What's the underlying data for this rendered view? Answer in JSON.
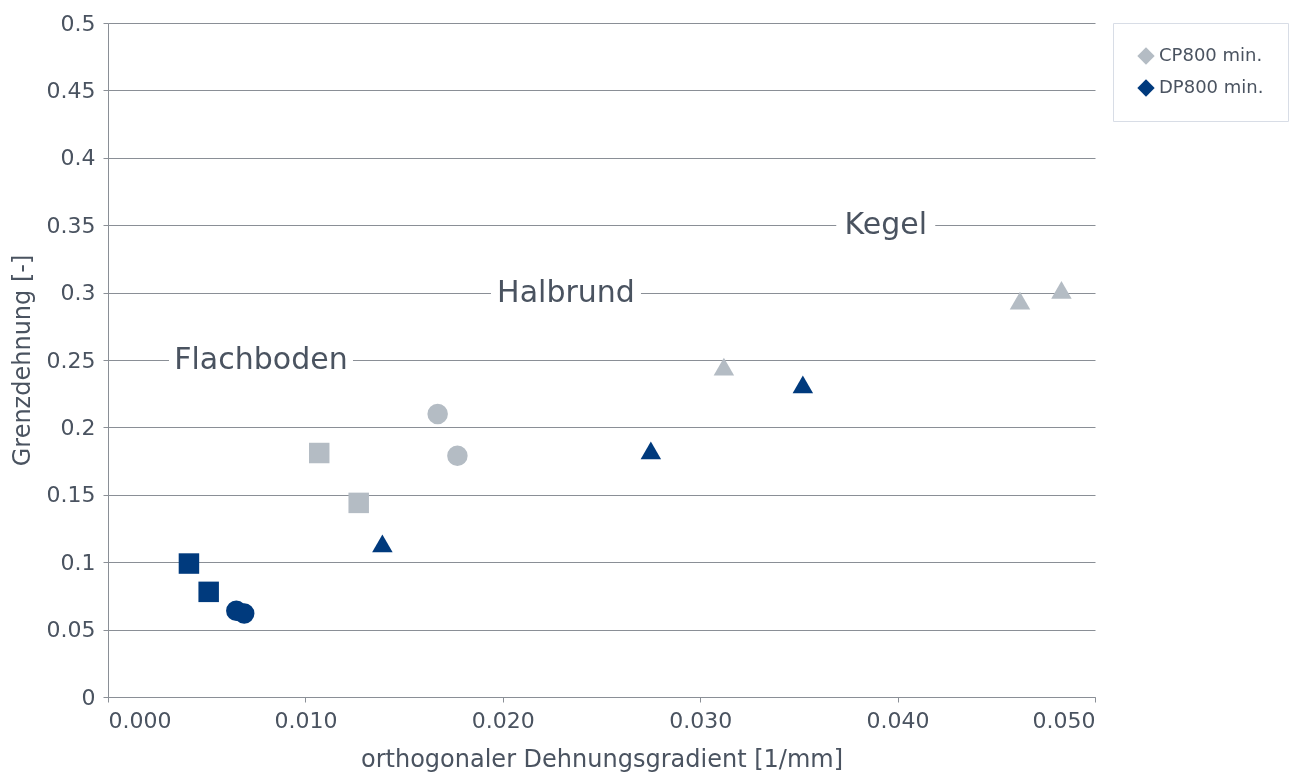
{
  "chart_data": {
    "type": "scatter",
    "xlabel": "orthogonaler Dehnungsgradient [1/mm]",
    "ylabel": "Grenzdehnung [-]",
    "xlim": [
      0,
      0.05
    ],
    "xticks": [
      {
        "value": 0,
        "label": "0.000"
      },
      {
        "value": 0.01,
        "label": "0.010"
      },
      {
        "value": 0.02,
        "label": "0.020"
      },
      {
        "value": 0.03,
        "label": "0.030"
      },
      {
        "value": 0.04,
        "label": "0.040"
      },
      {
        "value": 0.05,
        "label": "0.050"
      }
    ],
    "ylim": [
      0,
      0.5
    ],
    "yticks": [
      0,
      0.05,
      0.1,
      0.15,
      0.2,
      0.25,
      0.3,
      0.35,
      0.4,
      0.45,
      0.5
    ],
    "grid": "y",
    "legend": "top right",
    "marker": "diamond",
    "series": [
      {
        "name": "CP800 min.",
        "color": "#b4bcc4",
        "marker": "square",
        "x": [
          0.0107,
          0.0127
        ],
        "values": [
          0.181,
          0.144
        ]
      },
      {
        "color": "#b4bcc4",
        "marker": "circle",
        "x": [
          0.0167,
          0.0177
        ],
        "values": [
          0.21,
          0.179
        ]
      },
      {
        "color": "#b4bcc4",
        "marker": "triangle",
        "x": [
          0.0312,
          0.0462,
          0.0483
        ],
        "values": [
          0.245,
          0.294,
          0.302
        ]
      },
      {
        "name": "DP800 min.",
        "color": "#003a7d",
        "marker": "square",
        "x": [
          0.0041,
          0.0051
        ],
        "values": [
          0.099,
          0.078
        ]
      },
      {
        "color": "#003a7d",
        "marker": "circle",
        "x": [
          0.0065,
          0.0069
        ],
        "values": [
          0.064,
          0.062
        ]
      },
      {
        "color": "#003a7d",
        "marker": "triangle",
        "x": [
          0.0139,
          0.0275,
          0.0352
        ],
        "values": [
          0.114,
          0.183,
          0.232
        ]
      }
    ],
    "annotations": [
      "Flachboden",
      "Halbrund",
      "Kegel"
    ]
  }
}
